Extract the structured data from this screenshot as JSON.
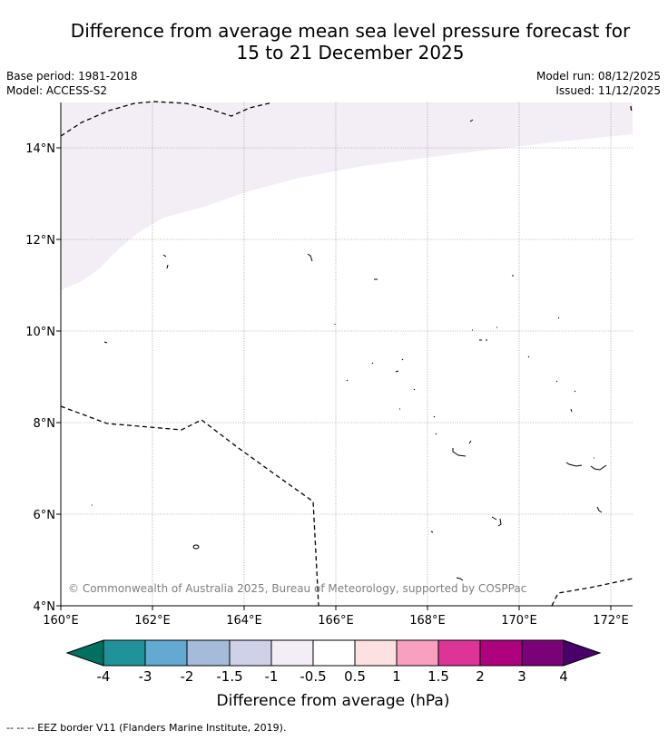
{
  "header": {
    "title_line1": "Difference from average mean sea level pressure forecast for",
    "title_line2": "15 to 21 December 2025",
    "base_period": "Base period: 1981-2018",
    "model": "Model: ACCESS-S2",
    "model_run": "Model run: 08/12/2025",
    "issued": "Issued: 11/12/2025"
  },
  "map": {
    "lon_labels": [
      "160°E",
      "162°E",
      "164°E",
      "166°E",
      "168°E",
      "170°E",
      "172°E"
    ],
    "lat_labels": [
      "14°N",
      "12°N",
      "10°N",
      "8°N",
      "6°N",
      "4°N"
    ],
    "copyright": "© Commonwealth of Australia 2025, Bureau of Meteorology, supported by COSPPac",
    "shaded_category": "-1 to -0.5"
  },
  "colorbar": {
    "ticks": [
      "-4",
      "-3",
      "-2",
      "-1.5",
      "-1",
      "-0.5",
      "0.5",
      "1",
      "1.5",
      "2",
      "3",
      "4"
    ],
    "colors": [
      "#007061",
      "#1f9399",
      "#64a9d2",
      "#a6bad9",
      "#cfd1e8",
      "#f3eef6",
      "#ffffff",
      "#fde0e1",
      "#f99fbf",
      "#dd3497",
      "#ae017e",
      "#7a0177",
      "#49006a"
    ],
    "label": "Difference from average (hPa)"
  },
  "footer": {
    "legend": "-- -- -- EEZ border V11 (Flanders Marine Institute, 2019)."
  }
}
